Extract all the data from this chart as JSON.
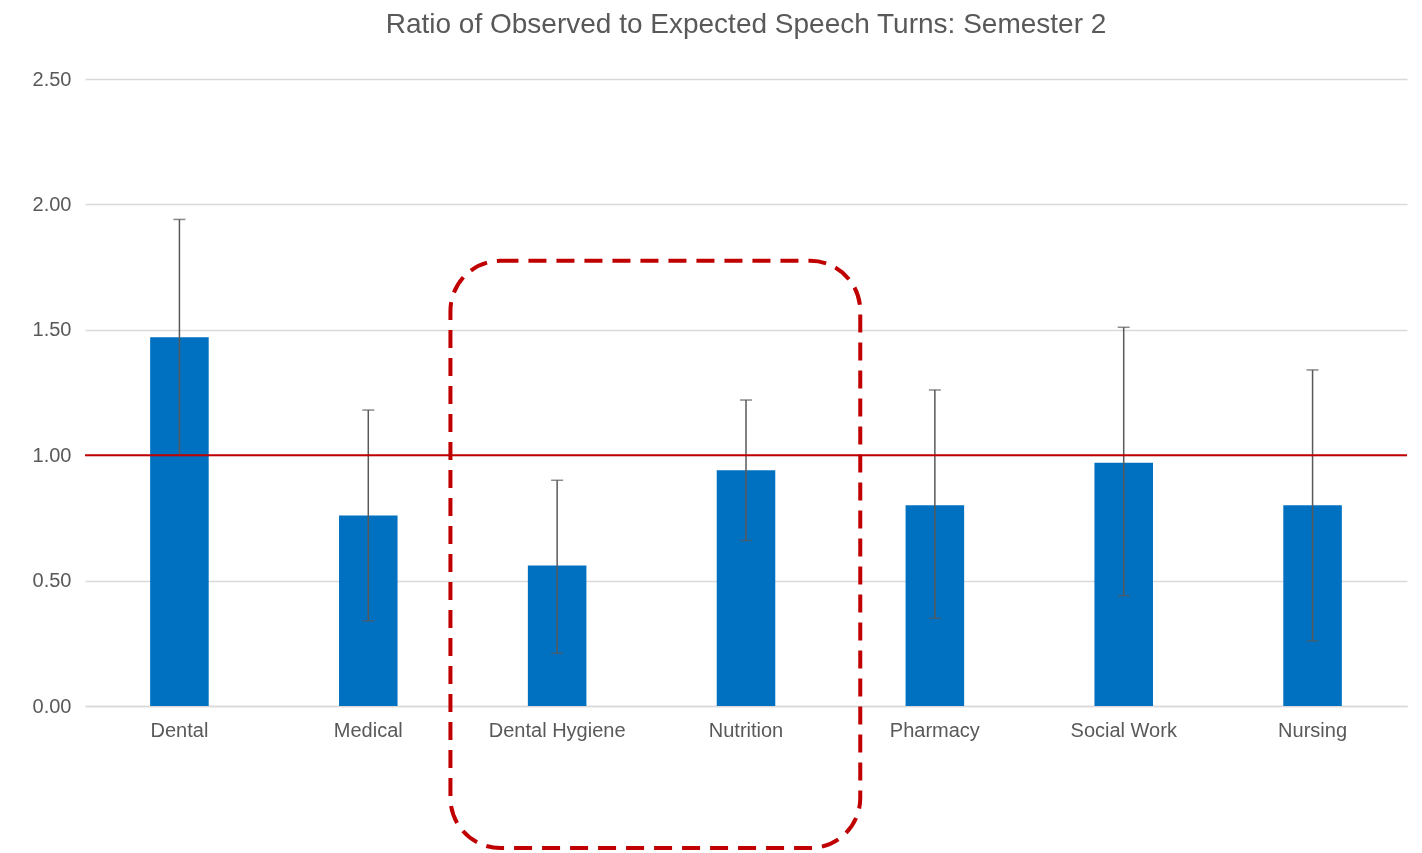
{
  "chart_data": {
    "type": "bar",
    "title": "Ratio of Observed to Expected Speech Turns: Semester 2",
    "categories": [
      "Dental",
      "Medical",
      "Dental Hygiene",
      "Nutrition",
      "Pharmacy",
      "Social Work",
      "Nursing"
    ],
    "values": [
      1.47,
      0.76,
      0.56,
      0.94,
      0.8,
      0.97,
      0.8
    ],
    "errors": [
      [
        1.0,
        1.94
      ],
      [
        0.34,
        1.18
      ],
      [
        0.21,
        0.9
      ],
      [
        0.66,
        1.22
      ],
      [
        0.35,
        1.26
      ],
      [
        0.44,
        1.51
      ],
      [
        0.26,
        1.34
      ]
    ],
    "color": "#0070c0",
    "ylim": [
      0,
      2.5
    ],
    "yticks": [
      {
        "value": 0,
        "label": "0.00"
      },
      {
        "value": 0.5,
        "label": "0.50"
      },
      {
        "value": 1,
        "label": "1.00"
      },
      {
        "value": 1.5,
        "label": "1.50"
      },
      {
        "value": 2,
        "label": "2.00"
      },
      {
        "value": 2.5,
        "label": "2.50"
      }
    ],
    "grid": "y",
    "ref_lines": [
      {
        "axis": "y",
        "value": 1,
        "color": "#c00000"
      }
    ]
  }
}
